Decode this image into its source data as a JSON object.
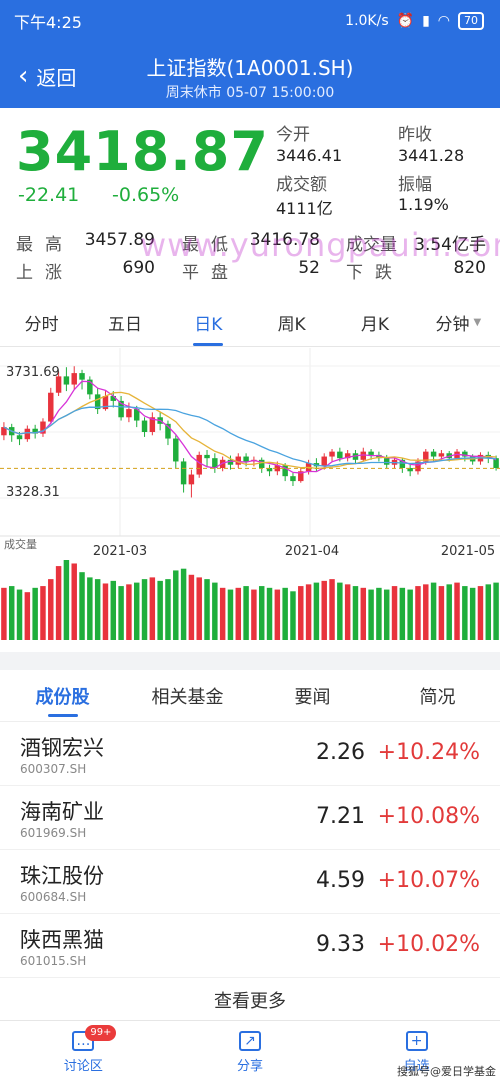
{
  "status_bar": {
    "time": "下午4:25",
    "speed": "1.0K/s",
    "battery": "70"
  },
  "header": {
    "back_label": "返回",
    "title": "上证指数(1A0001.SH)",
    "subtitle": "周末休市 05-07 15:00:00"
  },
  "quote": {
    "price": "3418.87",
    "change": "-22.41",
    "change_pct": "-0.65%",
    "open_label": "今开",
    "open_value": "3446.41",
    "prev_close_label": "昨收",
    "prev_close_value": "3441.28",
    "turnover_label": "成交额",
    "turnover_value": "4111亿",
    "amplitude_label": "振幅",
    "amplitude_value": "1.19%",
    "high_label": "最高",
    "high_value": "3457.89",
    "low_label": "最低",
    "low_value": "3416.78",
    "volume_label": "成交量",
    "volume_value": "3.54亿手",
    "up_label": "上涨",
    "up_value": "690",
    "flat_label": "平盘",
    "flat_value": "52",
    "down_label": "下跌",
    "down_value": "820",
    "watermark": "www.yurongpauin.com"
  },
  "kline_tabs": [
    "分时",
    "五日",
    "日K",
    "周K",
    "月K",
    "分钟"
  ],
  "kline_active": 2,
  "chart_data": {
    "type": "candlestick",
    "ylim": [
      3328.31,
      3731.69
    ],
    "y_high_label": "3731.69",
    "y_low_label": "3328.31",
    "dashed_line": 3418.87,
    "x_ticks": [
      "2021-03",
      "2021-04",
      "2021-05"
    ],
    "volume_label": "成交量",
    "colors": {
      "up": "#e8333d",
      "down": "#1fae3c",
      "ma5": "#d733d8",
      "ma10": "#e6b43a",
      "ma20": "#4aa3df",
      "dashed": "#d4a017"
    },
    "candles": [
      [
        3520,
        3545,
        3505,
        3560
      ],
      [
        3545,
        3520,
        3500,
        3555
      ],
      [
        3520,
        3508,
        3490,
        3530
      ],
      [
        3508,
        3540,
        3500,
        3550
      ],
      [
        3540,
        3525,
        3510,
        3552
      ],
      [
        3525,
        3562,
        3515,
        3572
      ],
      [
        3562,
        3650,
        3555,
        3665
      ],
      [
        3650,
        3700,
        3640,
        3715
      ],
      [
        3700,
        3675,
        3655,
        3728
      ],
      [
        3675,
        3710,
        3660,
        3731
      ],
      [
        3710,
        3690,
        3660,
        3720
      ],
      [
        3690,
        3645,
        3630,
        3700
      ],
      [
        3645,
        3600,
        3585,
        3665
      ],
      [
        3600,
        3640,
        3595,
        3655
      ],
      [
        3640,
        3625,
        3605,
        3655
      ],
      [
        3625,
        3575,
        3565,
        3640
      ],
      [
        3575,
        3600,
        3560,
        3620
      ],
      [
        3600,
        3565,
        3545,
        3610
      ],
      [
        3565,
        3530,
        3515,
        3575
      ],
      [
        3530,
        3575,
        3520,
        3590
      ],
      [
        3575,
        3555,
        3535,
        3590
      ],
      [
        3555,
        3510,
        3490,
        3565
      ],
      [
        3510,
        3440,
        3420,
        3520
      ],
      [
        3440,
        3370,
        3345,
        3450
      ],
      [
        3370,
        3400,
        3330,
        3415
      ],
      [
        3400,
        3460,
        3390,
        3470
      ],
      [
        3460,
        3450,
        3425,
        3475
      ],
      [
        3450,
        3420,
        3405,
        3465
      ],
      [
        3420,
        3445,
        3410,
        3455
      ],
      [
        3445,
        3430,
        3415,
        3458
      ],
      [
        3430,
        3455,
        3420,
        3465
      ],
      [
        3455,
        3440,
        3425,
        3465
      ],
      [
        3440,
        3445,
        3425,
        3455
      ],
      [
        3445,
        3420,
        3405,
        3452
      ],
      [
        3420,
        3410,
        3395,
        3430
      ],
      [
        3410,
        3428,
        3398,
        3440
      ],
      [
        3428,
        3395,
        3380,
        3435
      ],
      [
        3395,
        3380,
        3365,
        3405
      ],
      [
        3380,
        3410,
        3375,
        3420
      ],
      [
        3410,
        3435,
        3400,
        3445
      ],
      [
        3435,
        3425,
        3410,
        3450
      ],
      [
        3425,
        3455,
        3415,
        3465
      ],
      [
        3455,
        3470,
        3440,
        3478
      ],
      [
        3470,
        3450,
        3440,
        3482
      ],
      [
        3450,
        3465,
        3440,
        3475
      ],
      [
        3465,
        3445,
        3435,
        3475
      ],
      [
        3445,
        3470,
        3440,
        3482
      ],
      [
        3470,
        3460,
        3445,
        3478
      ],
      [
        3460,
        3450,
        3440,
        3470
      ],
      [
        3450,
        3430,
        3420,
        3460
      ],
      [
        3430,
        3445,
        3420,
        3455
      ],
      [
        3445,
        3420,
        3405,
        3450
      ],
      [
        3420,
        3410,
        3395,
        3430
      ],
      [
        3410,
        3440,
        3400,
        3450
      ],
      [
        3440,
        3470,
        3430,
        3478
      ],
      [
        3470,
        3455,
        3440,
        3478
      ],
      [
        3455,
        3465,
        3445,
        3475
      ],
      [
        3465,
        3450,
        3440,
        3472
      ],
      [
        3450,
        3470,
        3445,
        3478
      ],
      [
        3470,
        3455,
        3440,
        3475
      ],
      [
        3455,
        3440,
        3430,
        3462
      ],
      [
        3440,
        3460,
        3430,
        3468
      ],
      [
        3460,
        3450,
        3435,
        3470
      ],
      [
        3450,
        3420,
        3412,
        3458
      ]
    ],
    "volumes": [
      60,
      62,
      58,
      55,
      60,
      62,
      70,
      85,
      92,
      88,
      78,
      72,
      70,
      65,
      68,
      62,
      64,
      66,
      70,
      72,
      68,
      70,
      80,
      82,
      75,
      72,
      70,
      66,
      60,
      58,
      60,
      62,
      58,
      62,
      60,
      58,
      60,
      56,
      62,
      64,
      66,
      68,
      70,
      66,
      64,
      62,
      60,
      58,
      60,
      58,
      62,
      60,
      58,
      62,
      64,
      66,
      62,
      64,
      66,
      62,
      60,
      62,
      64,
      66
    ]
  },
  "constituent_tabs": [
    "成份股",
    "相关基金",
    "要闻",
    "简况"
  ],
  "constituent_active": 0,
  "stocks": [
    {
      "name": "酒钢宏兴",
      "code": "600307.SH",
      "price": "2.26",
      "pct": "+10.24%"
    },
    {
      "name": "海南矿业",
      "code": "601969.SH",
      "price": "7.21",
      "pct": "+10.08%"
    },
    {
      "name": "珠江股份",
      "code": "600684.SH",
      "price": "4.59",
      "pct": "+10.07%"
    },
    {
      "name": "陕西黑猫",
      "code": "601015.SH",
      "price": "9.33",
      "pct": "+10.02%"
    }
  ],
  "more_label": "查看更多",
  "bottom_nav": {
    "discuss": "讨论区",
    "discuss_badge": "99+",
    "share": "分享",
    "watchlist": "自选"
  },
  "corner_watermark": "搜狐号@爱日学基金"
}
